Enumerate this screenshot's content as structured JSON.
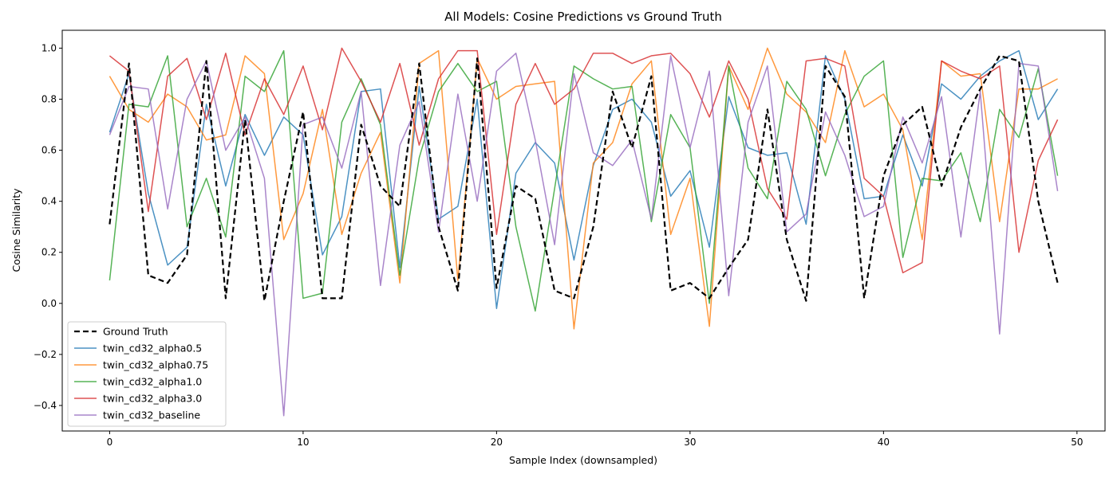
{
  "chart_data": {
    "type": "line",
    "title": "All Models: Cosine Predictions vs Ground Truth",
    "xlabel": "Sample Index (downsampled)",
    "ylabel": "Cosine Similarity",
    "xlim": [
      -2.45,
      51.45
    ],
    "ylim": [
      -0.5,
      1.07
    ],
    "xticks": [
      0,
      10,
      20,
      30,
      40,
      50
    ],
    "yticks": [
      -0.4,
      -0.2,
      0.0,
      0.2,
      0.4,
      0.6,
      0.8,
      1.0
    ],
    "ytick_labels": [
      "−0.4",
      "−0.2",
      "0.0",
      "0.2",
      "0.4",
      "0.6",
      "0.8",
      "1.0"
    ],
    "grid": false,
    "legend_position": "lower-left",
    "x": [
      0,
      1,
      2,
      3,
      4,
      5,
      6,
      7,
      8,
      9,
      10,
      11,
      12,
      13,
      14,
      15,
      16,
      17,
      18,
      19,
      20,
      21,
      22,
      23,
      24,
      25,
      26,
      27,
      28,
      29,
      30,
      31,
      32,
      33,
      34,
      35,
      36,
      37,
      38,
      39,
      40,
      41,
      42,
      43,
      44,
      45,
      46,
      47,
      48,
      49
    ],
    "series": [
      {
        "name": "Ground Truth",
        "color": "#000000",
        "dashed": true,
        "values": [
          0.31,
          0.94,
          0.11,
          0.08,
          0.19,
          0.95,
          0.02,
          0.72,
          0.01,
          0.4,
          0.75,
          0.02,
          0.02,
          0.7,
          0.46,
          0.38,
          0.94,
          0.3,
          0.05,
          0.96,
          0.06,
          0.46,
          0.41,
          0.05,
          0.02,
          0.3,
          0.83,
          0.61,
          0.89,
          0.05,
          0.08,
          0.02,
          0.14,
          0.25,
          0.76,
          0.25,
          0.01,
          0.93,
          0.81,
          0.02,
          0.5,
          0.7,
          0.77,
          0.46,
          0.69,
          0.84,
          0.97,
          0.95,
          0.4,
          0.08
        ]
      },
      {
        "name": "twin_cd32_alpha0.5",
        "color": "#1f77b4",
        "dashed": false,
        "values": [
          0.67,
          0.9,
          0.43,
          0.15,
          0.22,
          0.78,
          0.46,
          0.74,
          0.58,
          0.73,
          0.66,
          0.19,
          0.34,
          0.83,
          0.84,
          0.14,
          0.85,
          0.33,
          0.38,
          0.8,
          -0.02,
          0.51,
          0.63,
          0.55,
          0.17,
          0.54,
          0.76,
          0.8,
          0.71,
          0.42,
          0.52,
          0.22,
          0.81,
          0.61,
          0.58,
          0.59,
          0.31,
          0.97,
          0.8,
          0.41,
          0.42,
          0.66,
          0.46,
          0.86,
          0.8,
          0.89,
          0.95,
          0.99,
          0.72,
          0.84
        ]
      },
      {
        "name": "twin_cd32_alpha0.75",
        "color": "#ff7f0e",
        "dashed": false,
        "values": [
          0.89,
          0.76,
          0.71,
          0.82,
          0.77,
          0.64,
          0.66,
          0.97,
          0.9,
          0.25,
          0.43,
          0.76,
          0.27,
          0.51,
          0.67,
          0.08,
          0.94,
          0.99,
          0.09,
          0.96,
          0.8,
          0.85,
          0.86,
          0.87,
          -0.1,
          0.55,
          0.63,
          0.86,
          0.95,
          0.27,
          0.49,
          -0.09,
          0.93,
          0.76,
          1.0,
          0.82,
          0.75,
          0.63,
          0.99,
          0.77,
          0.82,
          0.68,
          0.25,
          0.95,
          0.89,
          0.9,
          0.32,
          0.84,
          0.84,
          0.88
        ]
      },
      {
        "name": "twin_cd32_alpha1.0",
        "color": "#2ca02c",
        "dashed": false,
        "values": [
          0.09,
          0.78,
          0.77,
          0.97,
          0.3,
          0.49,
          0.26,
          0.89,
          0.83,
          0.99,
          0.02,
          0.04,
          0.71,
          0.88,
          0.7,
          0.11,
          0.57,
          0.83,
          0.94,
          0.83,
          0.87,
          0.3,
          -0.03,
          0.45,
          0.93,
          0.88,
          0.84,
          0.85,
          0.32,
          0.74,
          0.61,
          0.0,
          0.93,
          0.53,
          0.41,
          0.87,
          0.76,
          0.5,
          0.74,
          0.89,
          0.95,
          0.18,
          0.49,
          0.48,
          0.59,
          0.32,
          0.76,
          0.65,
          0.92,
          0.5
        ]
      },
      {
        "name": "twin_cd32_alpha3.0",
        "color": "#d62728",
        "dashed": false,
        "values": [
          0.97,
          0.91,
          0.36,
          0.89,
          0.96,
          0.72,
          0.98,
          0.66,
          0.88,
          0.74,
          0.93,
          0.68,
          1.0,
          0.87,
          0.71,
          0.94,
          0.62,
          0.88,
          0.99,
          0.99,
          0.27,
          0.78,
          0.94,
          0.78,
          0.84,
          0.98,
          0.98,
          0.94,
          0.97,
          0.98,
          0.9,
          0.73,
          0.95,
          0.8,
          0.45,
          0.33,
          0.95,
          0.96,
          0.93,
          0.49,
          0.42,
          0.12,
          0.16,
          0.95,
          0.91,
          0.88,
          0.93,
          0.2,
          0.56,
          0.72
        ]
      },
      {
        "name": "twin_cd32_baseline",
        "color": "#9467bd",
        "dashed": false,
        "values": [
          0.66,
          0.85,
          0.84,
          0.37,
          0.8,
          0.95,
          0.6,
          0.73,
          0.49,
          -0.44,
          0.7,
          0.73,
          0.53,
          0.83,
          0.07,
          0.62,
          0.79,
          0.28,
          0.82,
          0.4,
          0.91,
          0.98,
          0.64,
          0.23,
          0.9,
          0.59,
          0.54,
          0.64,
          0.33,
          0.97,
          0.61,
          0.91,
          0.03,
          0.71,
          0.93,
          0.28,
          0.35,
          0.75,
          0.58,
          0.34,
          0.38,
          0.73,
          0.55,
          0.81,
          0.26,
          0.83,
          -0.12,
          0.94,
          0.93,
          0.44
        ]
      }
    ]
  }
}
